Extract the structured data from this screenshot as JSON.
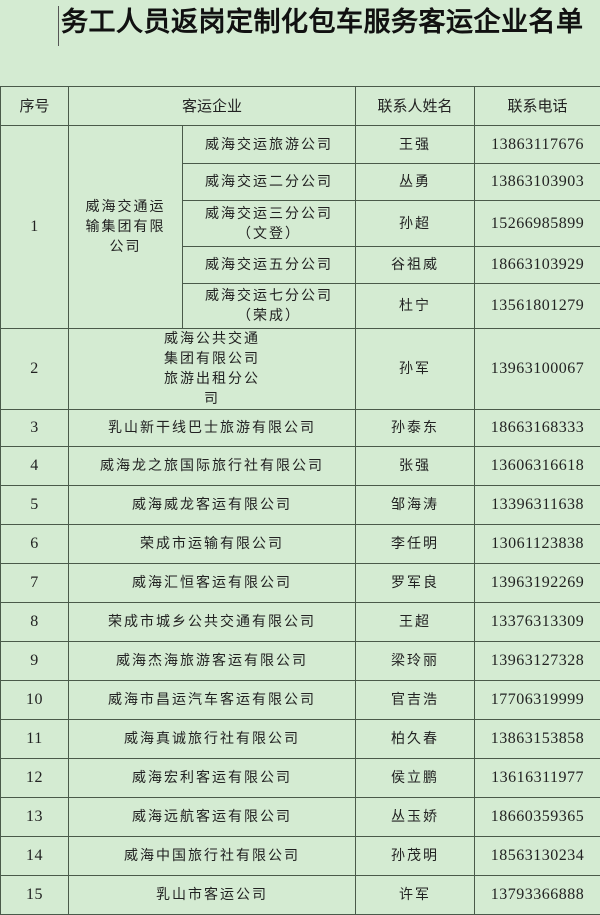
{
  "title": "务工人员返岗定制化包车服务客运企业名单",
  "headers": {
    "no": "序号",
    "company": "客运企业",
    "contact": "联系人姓名",
    "phone": "联系电话"
  },
  "group": {
    "no": "1",
    "company": "威海交通运输集团有限公司",
    "subs": [
      {
        "name": "威海交运旅游公司",
        "contact": "王强",
        "phone": "13863117676"
      },
      {
        "name": "威海交运二分公司",
        "contact": "丛勇",
        "phone": "13863103903"
      },
      {
        "name": "威海交运三分公司（文登）",
        "contact": "孙超",
        "phone": "15266985899"
      },
      {
        "name": "威海交运五分公司",
        "contact": "谷祖威",
        "phone": "18663103929"
      },
      {
        "name": "威海交运七分公司（荣成）",
        "contact": "杜宁",
        "phone": "13561801279"
      }
    ]
  },
  "rows": [
    {
      "no": "2",
      "company": "威海公共交通集团有限公司旅游出租分公司",
      "contact": "孙军",
      "phone": "13963100067"
    },
    {
      "no": "3",
      "company": "乳山新干线巴士旅游有限公司",
      "contact": "孙泰东",
      "phone": "18663168333"
    },
    {
      "no": "4",
      "company": "威海龙之旅国际旅行社有限公司",
      "contact": "张强",
      "phone": "13606316618"
    },
    {
      "no": "5",
      "company": "威海威龙客运有限公司",
      "contact": "邹海涛",
      "phone": "13396311638"
    },
    {
      "no": "6",
      "company": "荣成市运输有限公司",
      "contact": "李任明",
      "phone": "13061123838"
    },
    {
      "no": "7",
      "company": "威海汇恒客运有限公司",
      "contact": "罗军良",
      "phone": "13963192269"
    },
    {
      "no": "8",
      "company": "荣成市城乡公共交通有限公司",
      "contact": "王超",
      "phone": "13376313309"
    },
    {
      "no": "9",
      "company": "威海杰海旅游客运有限公司",
      "contact": "梁玲丽",
      "phone": "13963127328"
    },
    {
      "no": "10",
      "company": "威海市昌运汽车客运有限公司",
      "contact": "官吉浩",
      "phone": "17706319999"
    },
    {
      "no": "11",
      "company": "威海真诚旅行社有限公司",
      "contact": "柏久春",
      "phone": "13863153858"
    },
    {
      "no": "12",
      "company": "威海宏利客运有限公司",
      "contact": "侯立鹏",
      "phone": "13616311977"
    },
    {
      "no": "13",
      "company": "威海远航客运有限公司",
      "contact": "丛玉娇",
      "phone": "18660359365"
    },
    {
      "no": "14",
      "company": "威海中国旅行社有限公司",
      "contact": "孙茂明",
      "phone": "18563130234"
    },
    {
      "no": "15",
      "company": "乳山市客运公司",
      "contact": "许军",
      "phone": "13793366888"
    }
  ]
}
